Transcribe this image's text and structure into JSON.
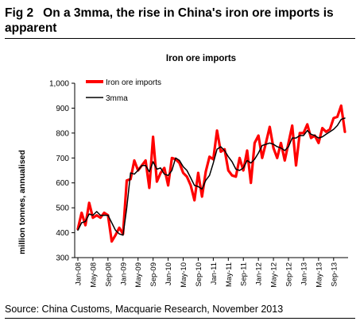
{
  "figure": {
    "number": "Fig 2",
    "title": "On a 3mma, the rise in China's iron ore imports is apparent"
  },
  "source": "Source: China Customs, Macquarie Research, November 2013",
  "chart_data": {
    "type": "line",
    "title": "Iron ore imports",
    "xlabel": "",
    "ylabel": "million tonnes, annualised",
    "ylim": [
      300,
      1000
    ],
    "yticks": [
      300,
      400,
      500,
      600,
      700,
      800,
      900,
      1000
    ],
    "ytick_labels": [
      "300",
      "400",
      "500",
      "600",
      "700",
      "800",
      "900",
      "1,000"
    ],
    "x_start": "2008-01",
    "x_tick_labels": [
      "Jan-08",
      "May-08",
      "Sep-08",
      "Jan-09",
      "May-09",
      "Sep-09",
      "Jan-10",
      "May-10",
      "Sep-10",
      "Jan-11",
      "May-11",
      "Sep-11",
      "Jan-12",
      "May-12",
      "Sep-12",
      "Jan-13",
      "May-13",
      "Sep-13"
    ],
    "grid": false,
    "legend_position": "top-left",
    "series": [
      {
        "name": "Iron ore imports",
        "color": "#ff0000",
        "values": [
          415,
          480,
          430,
          520,
          460,
          470,
          460,
          480,
          470,
          365,
          390,
          420,
          395,
          610,
          615,
          690,
          650,
          670,
          690,
          580,
          785,
          605,
          640,
          660,
          590,
          700,
          695,
          680,
          640,
          625,
          590,
          530,
          640,
          545,
          645,
          705,
          695,
          810,
          725,
          735,
          650,
          630,
          625,
          700,
          650,
          730,
          600,
          760,
          790,
          700,
          760,
          825,
          740,
          700,
          760,
          690,
          760,
          830,
          670,
          800,
          800,
          835,
          780,
          790,
          760,
          820,
          805,
          815,
          860,
          865,
          910,
          805
        ],
        "months": [
          "2008-01",
          "2008-02",
          "2008-03",
          "2008-04",
          "2008-05",
          "2008-06",
          "2008-07",
          "2008-08",
          "2008-09",
          "2008-10",
          "2008-11",
          "2008-12",
          "2009-01",
          "2009-02",
          "2009-03",
          "2009-04",
          "2009-05",
          "2009-06",
          "2009-07",
          "2009-08",
          "2009-09",
          "2009-10",
          "2009-11",
          "2009-12",
          "2010-01",
          "2010-02",
          "2010-03",
          "2010-04",
          "2010-05",
          "2010-06",
          "2010-07",
          "2010-08",
          "2010-09",
          "2010-10",
          "2010-11",
          "2010-12",
          "2011-01",
          "2011-02",
          "2011-03",
          "2011-04",
          "2011-05",
          "2011-06",
          "2011-07",
          "2011-08",
          "2011-09",
          "2011-10",
          "2011-11",
          "2011-12",
          "2012-01",
          "2012-02",
          "2012-03",
          "2012-04",
          "2012-05",
          "2012-06",
          "2012-07",
          "2012-08",
          "2012-09",
          "2012-10",
          "2012-11",
          "2012-12",
          "2013-01",
          "2013-02",
          "2013-03",
          "2013-04",
          "2013-05",
          "2013-06",
          "2013-07",
          "2013-08",
          "2013-09",
          "2013-10",
          "2013-11",
          "2013-12"
        ]
      },
      {
        "name": "3mma",
        "color": "#000000",
        "values": [
          410,
          440,
          445,
          475,
          470,
          485,
          470,
          470,
          470,
          440,
          410,
          395,
          390,
          500,
          640,
          635,
          650,
          670,
          670,
          645,
          685,
          655,
          660,
          635,
          630,
          650,
          700,
          690,
          665,
          650,
          620,
          590,
          585,
          575,
          610,
          630,
          680,
          735,
          745,
          730,
          705,
          685,
          655,
          650,
          660,
          690,
          680,
          695,
          720,
          750,
          755,
          760,
          755,
          745,
          740,
          730,
          745,
          780,
          780,
          790,
          790,
          810,
          795,
          790,
          780,
          785,
          795,
          805,
          815,
          830,
          855,
          860
        ]
      }
    ]
  }
}
